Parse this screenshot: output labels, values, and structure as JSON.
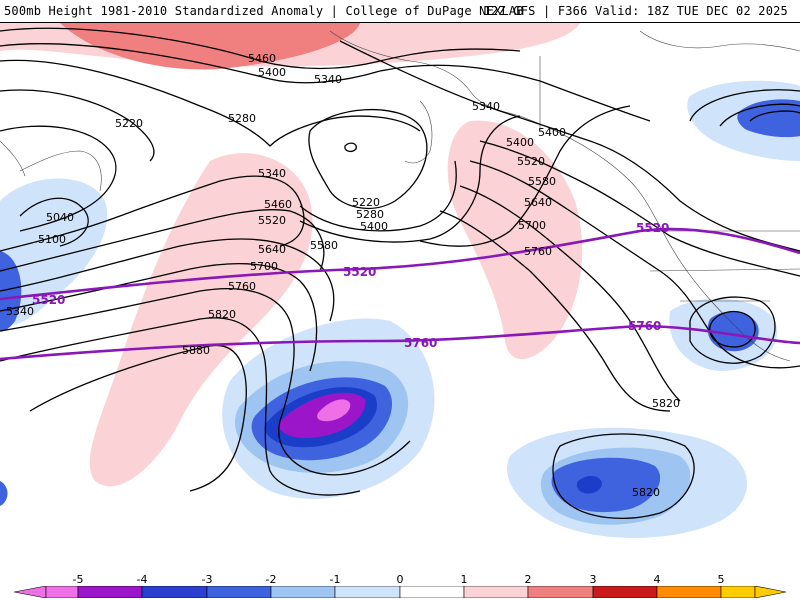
{
  "header": {
    "title_left": "500mb Height 1981-2010 Standardized Anomaly | College of DuPage NEXLAB",
    "title_right": "12Z GFS | F366 Valid: 18Z TUE DEC 02 2025"
  },
  "colorbar": {
    "ticks": [
      "-5",
      "-4",
      "-3",
      "-2",
      "-1",
      "0",
      "1",
      "2",
      "3",
      "4",
      "5"
    ],
    "colors": [
      "#ee6fe6",
      "#9b16c9",
      "#2a3fd0",
      "#3f63de",
      "#9ec4f2",
      "#cfe3fb",
      "#ffffff",
      "#fbd2d5",
      "#f08080",
      "#ee5050",
      "#c81a1a",
      "#ff8c00",
      "#ffcc00"
    ]
  },
  "map": {
    "contour_labels": [
      "5460",
      "5400",
      "5340",
      "5280",
      "5220",
      "5040",
      "5100",
      "5340",
      "5520",
      "5580",
      "5640",
      "5700",
      "5760",
      "5820",
      "5880",
      "5340",
      "5400",
      "5460",
      "5520",
      "5580",
      "5640",
      "5700",
      "5760",
      "5220",
      "5280",
      "5400",
      "5340",
      "5400",
      "5820",
      "5820"
    ],
    "purple_labels": [
      "5520",
      "5520",
      "5760",
      "5760",
      "5520"
    ],
    "anomaly_colors": {
      "neg1": "#cfe3fb",
      "neg2": "#9ec4f2",
      "neg3": "#3f63de",
      "neg4": "#1a3ec8",
      "neg5": "#9b16c9",
      "neg6": "#ee6fe6",
      "pos1": "#fbd2d5",
      "pos2": "#f08080",
      "purple_line": "#8a17b8"
    }
  }
}
